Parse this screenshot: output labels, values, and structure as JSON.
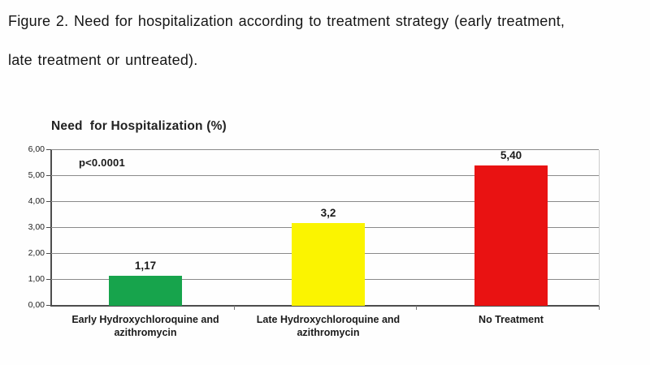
{
  "caption": {
    "line1": "Figure 2. Need for hospitalization according to treatment strategy (early treatment,",
    "line2": "late treatment or untreated)."
  },
  "chart_data": {
    "type": "bar",
    "title": "Need  for Hospitalization (%)",
    "annotation": "p<0.0001",
    "categories": [
      "Early Hydroxychloroquine and\nazithromycin",
      "Late Hydroxychloroquine and\nazithromycin",
      "No Treatment"
    ],
    "values": [
      1.17,
      3.2,
      5.4
    ],
    "value_labels": [
      "1,17",
      "3,2",
      "5,40"
    ],
    "bar_colors": [
      "#17a44c",
      "#fbf400",
      "#e91212"
    ],
    "ylim": [
      0,
      6
    ],
    "ytick_labels": [
      "0,00",
      "1,00",
      "2,00",
      "3,00",
      "4,00",
      "5,00",
      "6,00"
    ],
    "xlabel": "",
    "ylabel": "",
    "grid": true,
    "legend": false
  },
  "colors": {
    "grid": "#8a8a8a",
    "axis": "#4d4d4d",
    "text": "#1b1b1b",
    "background": "#fefefe"
  }
}
